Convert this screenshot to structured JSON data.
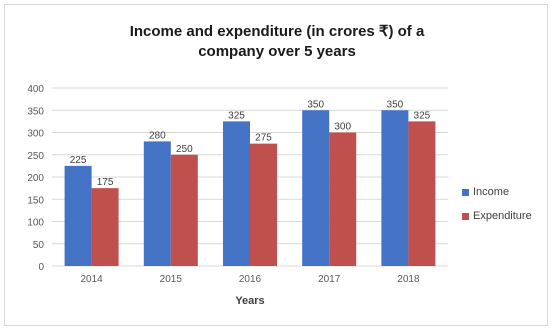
{
  "colors": {
    "income": "#4472C4",
    "expenditure": "#C0504D",
    "grid": "#d9d9d9",
    "axis_text": "#595959"
  },
  "chart_data": {
    "type": "bar",
    "title_lines": [
      "Income and expenditure (in crores ₹) of a",
      "company over 5 years"
    ],
    "categories": [
      "2014",
      "2015",
      "2016",
      "2017",
      "2018"
    ],
    "series": [
      {
        "name": "Income",
        "values": [
          225,
          280,
          325,
          350,
          350
        ],
        "labels": [
          "225",
          "280",
          "325",
          "350",
          "350"
        ]
      },
      {
        "name": "Expenditure",
        "values": [
          175,
          250,
          275,
          300,
          325
        ],
        "labels": [
          "175",
          "250",
          "275",
          "300",
          "325"
        ]
      }
    ],
    "xlabel": "Years",
    "ylabel": "",
    "ylim": [
      0,
      400
    ],
    "yticks": [
      "0",
      "50",
      "100",
      "150",
      "200",
      "250",
      "300",
      "350",
      "400"
    ],
    "grid": true,
    "legend_position": "right"
  }
}
